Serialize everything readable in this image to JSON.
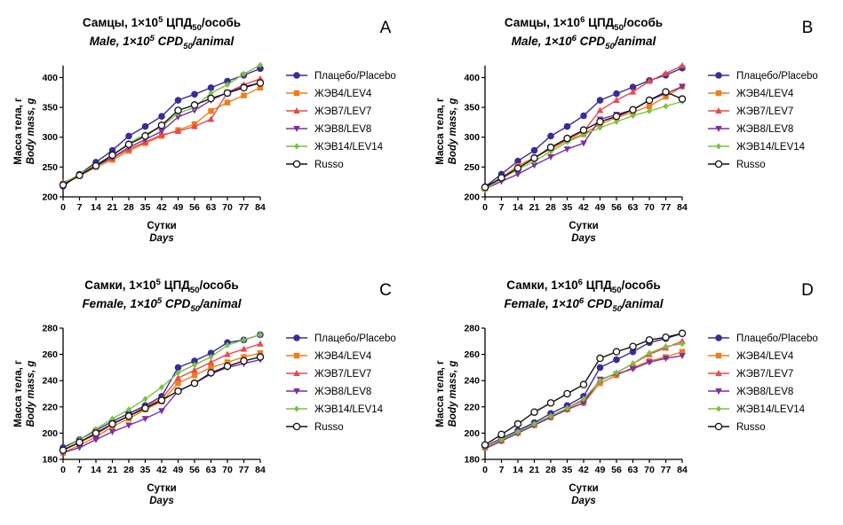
{
  "colors": {
    "placebo": "#3b2b96",
    "lev4": "#f07d1a",
    "lev7": "#e84a4a",
    "lev8": "#7b2fa6",
    "lev14": "#7bc142",
    "russo": "#111111"
  },
  "chart_data": [
    {
      "type": "line",
      "panel_letter": "A",
      "title_ru": {
        "pre": "Самцы, 1×10",
        "sup": "5",
        "mid": " ЦПД",
        "sub": "50",
        "post": "/особь"
      },
      "title_en": {
        "pre": "Male, 1×10",
        "sup": "5",
        "mid": " CPD",
        "sub": "50",
        "post": "/animal"
      },
      "ylabel_ru": "Масса тела, г",
      "ylabel_en": "Body mass, g",
      "xlabel_ru": "Сутки",
      "xlabel_en": "Days",
      "x": [
        0,
        7,
        14,
        21,
        28,
        35,
        42,
        49,
        56,
        63,
        70,
        77,
        84
      ],
      "ylim": [
        200,
        420
      ],
      "yticks": [
        200,
        250,
        300,
        350,
        400
      ],
      "series": [
        {
          "name": "Плацебо/Placebo",
          "key": "placebo",
          "marker": "circle",
          "values": [
            218,
            238,
            258,
            278,
            302,
            318,
            335,
            362,
            372,
            383,
            394,
            404,
            415
          ]
        },
        {
          "name": "ЖЭВ4/LEV4",
          "key": "lev4",
          "marker": "square",
          "values": [
            222,
            235,
            250,
            262,
            277,
            290,
            302,
            312,
            322,
            344,
            358,
            370,
            383
          ]
        },
        {
          "name": "ЖЭВ7/LEV7",
          "key": "lev7",
          "marker": "triangle-up",
          "values": [
            224,
            236,
            252,
            265,
            280,
            292,
            304,
            310,
            318,
            330,
            375,
            388,
            398
          ]
        },
        {
          "name": "ЖЭВ8/LEV8",
          "key": "lev8",
          "marker": "triangle-down",
          "values": [
            220,
            236,
            252,
            266,
            283,
            296,
            310,
            334,
            345,
            362,
            375,
            385,
            391
          ]
        },
        {
          "name": "ЖЭВ14/LEV14",
          "key": "lev14",
          "marker": "diamond",
          "values": [
            222,
            238,
            254,
            270,
            290,
            305,
            318,
            340,
            350,
            374,
            388,
            406,
            421
          ]
        },
        {
          "name": "Russo",
          "key": "russo",
          "marker": "open-circle",
          "values": [
            220,
            236,
            252,
            270,
            288,
            302,
            320,
            345,
            354,
            365,
            374,
            383,
            391
          ]
        }
      ]
    },
    {
      "type": "line",
      "panel_letter": "B",
      "title_ru": {
        "pre": "Самцы, 1×10",
        "sup": "6",
        "mid": " ЦПД",
        "sub": "50",
        "post": "/особь"
      },
      "title_en": {
        "pre": "Male, 1×10",
        "sup": "6",
        "mid": " CPD",
        "sub": "50",
        "post": "/animal"
      },
      "ylabel_ru": "Масса тела, г",
      "ylabel_en": "Body mass, g",
      "xlabel_ru": "Сутки",
      "xlabel_en": "Days",
      "x": [
        0,
        7,
        14,
        21,
        28,
        35,
        42,
        49,
        56,
        63,
        70,
        77,
        84
      ],
      "ylim": [
        200,
        420
      ],
      "yticks": [
        200,
        250,
        300,
        350,
        400
      ],
      "series": [
        {
          "name": "Плацебо/Placebo",
          "key": "placebo",
          "marker": "circle",
          "values": [
            217,
            238,
            260,
            278,
            302,
            318,
            336,
            362,
            373,
            384,
            395,
            404,
            416
          ]
        },
        {
          "name": "ЖЭВ4/LEV4",
          "key": "lev4",
          "marker": "square",
          "values": [
            214,
            232,
            252,
            266,
            280,
            295,
            305,
            322,
            333,
            342,
            352,
            368,
            385
          ]
        },
        {
          "name": "ЖЭВ7/LEV7",
          "key": "lev7",
          "marker": "triangle-up",
          "values": [
            215,
            232,
            248,
            265,
            282,
            296,
            310,
            345,
            362,
            376,
            394,
            407,
            420
          ]
        },
        {
          "name": "ЖЭВ8/LEV8",
          "key": "lev8",
          "marker": "triangle-down",
          "values": [
            213,
            226,
            238,
            253,
            267,
            280,
            290,
            330,
            338,
            346,
            362,
            373,
            385
          ]
        },
        {
          "name": "ЖЭВ14/LEV14",
          "key": "lev14",
          "marker": "diamond",
          "values": [
            212,
            230,
            246,
            260,
            276,
            292,
            304,
            316,
            326,
            336,
            344,
            352,
            360
          ]
        },
        {
          "name": "Russo",
          "key": "russo",
          "marker": "open-circle",
          "values": [
            216,
            232,
            248,
            265,
            283,
            298,
            312,
            326,
            335,
            346,
            362,
            376,
            364
          ]
        }
      ]
    },
    {
      "type": "line",
      "panel_letter": "C",
      "title_ru": {
        "pre": "Самки, 1×10",
        "sup": "5",
        "mid": " ЦПД",
        "sub": "50",
        "post": "/особь"
      },
      "title_en": {
        "pre": "Female, 1×10",
        "sup": "5",
        "mid": " CPD",
        "sub": "50",
        "post": "/animal"
      },
      "ylabel_ru": "Масса тела, г",
      "ylabel_en": "Body mass, g",
      "xlabel_ru": "Сутки",
      "xlabel_en": "Days",
      "x": [
        0,
        7,
        14,
        21,
        28,
        35,
        42,
        49,
        56,
        63,
        70,
        77,
        84
      ],
      "ylim": [
        180,
        280
      ],
      "yticks": [
        180,
        200,
        220,
        240,
        260,
        280
      ],
      "series": [
        {
          "name": "Плацебо/Placebo",
          "key": "placebo",
          "marker": "circle",
          "values": [
            189,
            195,
            202,
            209,
            215,
            221,
            228,
            250,
            255,
            261,
            269,
            271,
            275
          ]
        },
        {
          "name": "ЖЭВ4/LEV4",
          "key": "lev4",
          "marker": "square",
          "values": [
            185,
            191,
            197,
            205,
            211,
            218,
            224,
            238,
            244,
            250,
            254,
            258,
            261
          ]
        },
        {
          "name": "ЖЭВ7/LEV7",
          "key": "lev7",
          "marker": "triangle-up",
          "values": [
            187,
            193,
            199,
            207,
            213,
            220,
            226,
            242,
            248,
            254,
            260,
            264,
            268
          ]
        },
        {
          "name": "ЖЭВ8/LEV8",
          "key": "lev8",
          "marker": "triangle-down",
          "values": [
            185,
            189,
            195,
            201,
            206,
            211,
            217,
            232,
            238,
            245,
            250,
            253,
            256
          ]
        },
        {
          "name": "ЖЭВ14/LEV14",
          "key": "lev14",
          "marker": "diamond",
          "values": [
            188,
            195,
            203,
            211,
            218,
            226,
            235,
            246,
            252,
            258,
            267,
            271,
            275
          ]
        },
        {
          "name": "Russo",
          "key": "russo",
          "marker": "open-circle",
          "values": [
            187,
            193,
            200,
            207,
            213,
            219,
            225,
            232,
            238,
            246,
            251,
            255,
            258
          ]
        }
      ]
    },
    {
      "type": "line",
      "panel_letter": "D",
      "title_ru": {
        "pre": "Самки, 1×10",
        "sup": "6",
        "mid": " ЦПД",
        "sub": "50",
        "post": "/особь"
      },
      "title_en": {
        "pre": "Female, 1×10",
        "sup": "6",
        "mid": " CPD",
        "sub": "50",
        "post": "/animal"
      },
      "ylabel_ru": "Масса тела, г",
      "ylabel_en": "Body mass, g",
      "xlabel_ru": "Сутки",
      "xlabel_en": "Days",
      "x": [
        0,
        7,
        14,
        21,
        28,
        35,
        42,
        49,
        56,
        63,
        70,
        77,
        84
      ],
      "ylim": [
        180,
        280
      ],
      "yticks": [
        180,
        200,
        220,
        240,
        260,
        280
      ],
      "series": [
        {
          "name": "Плацебо/Placebo",
          "key": "placebo",
          "marker": "circle",
          "values": [
            190,
            196,
            202,
            208,
            215,
            221,
            228,
            250,
            256,
            262,
            269,
            272,
            276
          ]
        },
        {
          "name": "ЖЭВ4/LEV4",
          "key": "lev4",
          "marker": "square",
          "values": [
            189,
            194,
            200,
            206,
            212,
            218,
            223,
            238,
            244,
            250,
            255,
            258,
            262
          ]
        },
        {
          "name": "ЖЭВ7/LEV7",
          "key": "lev7",
          "marker": "triangle-up",
          "values": [
            190,
            195,
            201,
            207,
            213,
            219,
            225,
            240,
            246,
            253,
            260,
            265,
            270
          ]
        },
        {
          "name": "ЖЭВ8/LEV8",
          "key": "lev8",
          "marker": "triangle-down",
          "values": [
            188,
            194,
            200,
            206,
            212,
            218,
            223,
            241,
            245,
            249,
            254,
            257,
            259
          ]
        },
        {
          "name": "ЖЭВ14/LEV14",
          "key": "lev14",
          "marker": "diamond",
          "values": [
            189,
            195,
            201,
            207,
            213,
            219,
            226,
            240,
            246,
            253,
            261,
            266,
            268
          ]
        },
        {
          "name": "Russo",
          "key": "russo",
          "marker": "open-circle",
          "values": [
            191,
            199,
            207,
            216,
            223,
            230,
            237,
            257,
            262,
            266,
            271,
            273,
            276
          ]
        }
      ]
    }
  ]
}
